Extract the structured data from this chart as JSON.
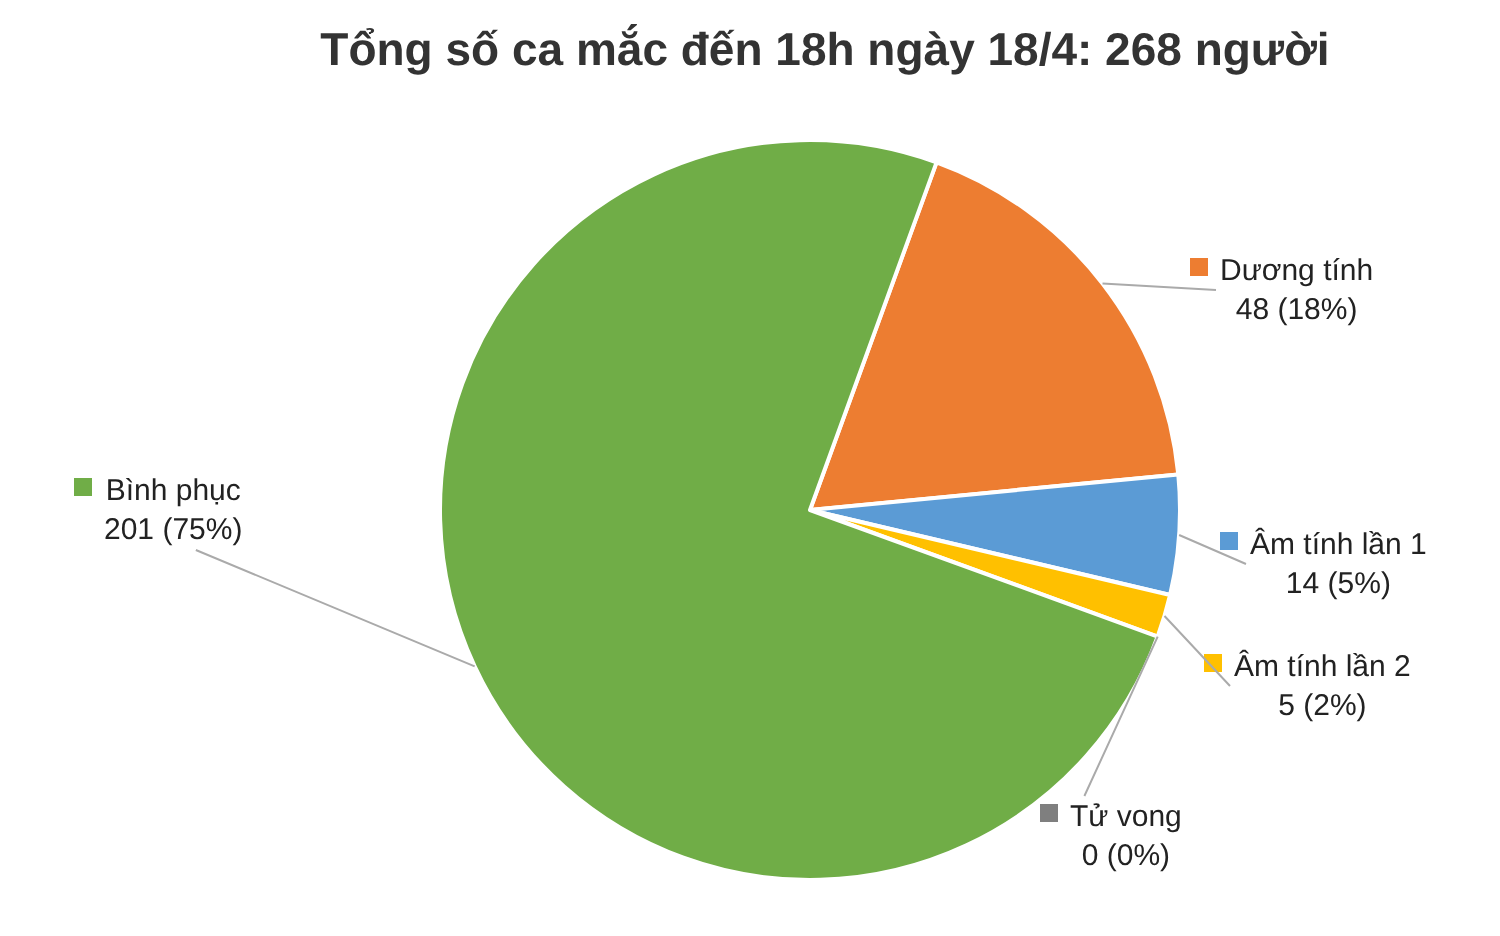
{
  "chart_data": {
    "type": "pie",
    "title": "Tổng số ca mắc đến 18h ngày 18/4: 268 người",
    "categories": [
      "Dương tính",
      "Âm tính lần 1",
      "Âm tính lần 2",
      "Tử vong",
      "Bình phục"
    ],
    "values": [
      48,
      14,
      5,
      0,
      201
    ],
    "colors": [
      "#ed7d31",
      "#5b9bd5",
      "#ffc000",
      "#7f7f7f",
      "#70ad47"
    ],
    "value_labels": [
      "48 (18%)",
      "14 (5%)",
      "5 (2%)",
      "0 (0%)",
      "201 (75%)"
    ],
    "legend": "bottom left"
  }
}
